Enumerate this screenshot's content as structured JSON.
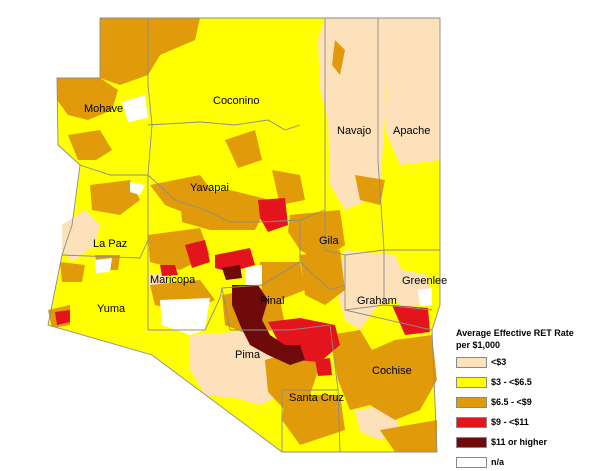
{
  "map": {
    "colors": {
      "lt3": "#fce1bb",
      "3to65": "#ffff00",
      "65to9": "#e09a0a",
      "9to11": "#e3141c",
      "ge11": "#6e0a0a",
      "na": "#ffffff",
      "border": "#8c8c8c"
    },
    "counties": [
      {
        "name": "Mohave"
      },
      {
        "name": "Coconino"
      },
      {
        "name": "Navajo"
      },
      {
        "name": "Apache"
      },
      {
        "name": "Yavapai"
      },
      {
        "name": "La Paz"
      },
      {
        "name": "Gila"
      },
      {
        "name": "Greenlee"
      },
      {
        "name": "Maricopa"
      },
      {
        "name": "Pinal"
      },
      {
        "name": "Graham"
      },
      {
        "name": "Yuma"
      },
      {
        "name": "Pima"
      },
      {
        "name": "Cochise"
      },
      {
        "name": "Santa Cruz"
      }
    ]
  },
  "legend": {
    "title_line1": "Average Effective RET Rate",
    "title_line2": "per $1,000",
    "items": [
      {
        "label": "<$3",
        "color": "#fce1bb"
      },
      {
        "label": "$3 - <$6.5",
        "color": "#ffff00"
      },
      {
        "label": "$6.5 - <$9",
        "color": "#e09a0a"
      },
      {
        "label": "$9 - <$11",
        "color": "#e3141c"
      },
      {
        "label": "$11 or higher",
        "color": "#6e0a0a"
      },
      {
        "label": "n/a",
        "color": "#ffffff"
      }
    ]
  }
}
